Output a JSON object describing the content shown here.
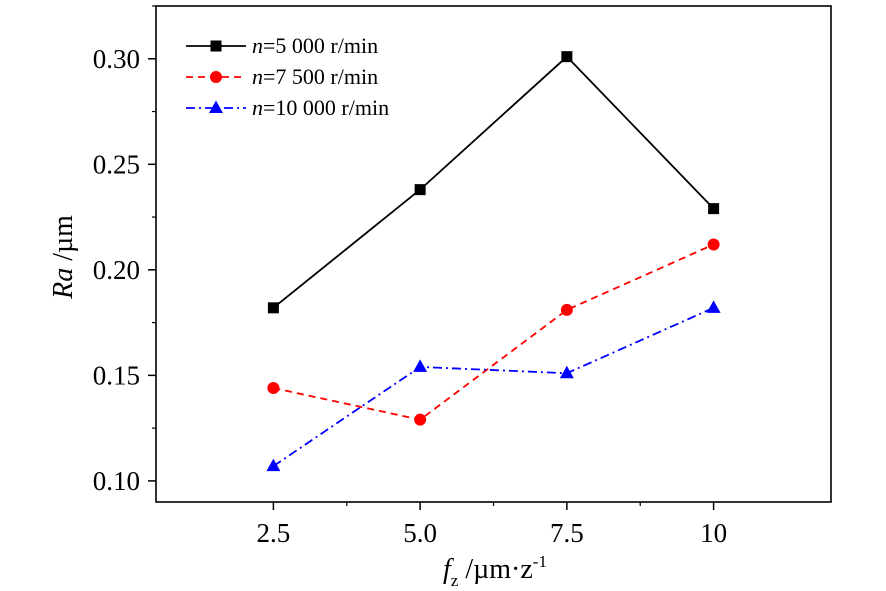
{
  "chart_data": {
    "type": "line",
    "x": [
      2.5,
      5.0,
      7.5,
      10
    ],
    "x_tick_labels": [
      "2.5",
      "5.0",
      "7.5",
      "10"
    ],
    "xlim": [
      0.5,
      12
    ],
    "y_ticks": [
      0.1,
      0.15,
      0.2,
      0.25,
      0.3
    ],
    "y_tick_labels": [
      "0.10",
      "0.15",
      "0.20",
      "0.25",
      "0.30"
    ],
    "ylim": [
      0.09,
      0.325
    ],
    "xlabel": {
      "symbol": "f",
      "subscript": "z",
      "unit": " /µm·z",
      "superscript": "-1"
    },
    "ylabel": {
      "symbol": "Ra",
      "unit": " /µm"
    },
    "legend_position": "top-left",
    "grid": false,
    "series": [
      {
        "name": {
          "var": "n",
          "text": "=5 000 r/min"
        },
        "values": [
          0.182,
          0.238,
          0.301,
          0.229
        ],
        "color": "#000000",
        "marker": "square",
        "line_style": "solid"
      },
      {
        "name": {
          "var": "n",
          "text": "=7 500 r/min"
        },
        "values": [
          0.144,
          0.129,
          0.181,
          0.212
        ],
        "color": "#ff0000",
        "marker": "circle",
        "line_style": "dashed"
      },
      {
        "name": {
          "var": "n",
          "text": "=10 000 r/min"
        },
        "values": [
          0.107,
          0.154,
          0.151,
          0.182
        ],
        "color": "#0000ff",
        "marker": "triangle",
        "line_style": "dash-dot"
      }
    ]
  }
}
